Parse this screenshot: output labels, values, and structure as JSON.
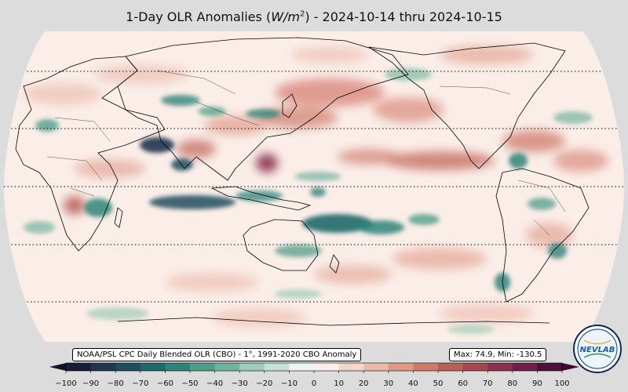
{
  "title": {
    "prefix": "1-Day OLR Anomalies (",
    "unit_main": "W/m",
    "unit_exp": "2",
    "suffix": ") - 2024-10-14 thru 2024-10-15"
  },
  "source_label": "NOAA/PSL CPC Daily Blended OLR (CBO) - 1°, 1991-2020 CBO Anomaly",
  "stats": {
    "text": "Max: 74.9,  Min: -130.5"
  },
  "colorbar": {
    "ticks": [
      "−100",
      "−90",
      "−80",
      "−70",
      "−60",
      "−50",
      "−40",
      "−30",
      "−20",
      "−10",
      "0",
      "10",
      "20",
      "30",
      "40",
      "50",
      "60",
      "70",
      "80",
      "90",
      "100"
    ],
    "colors": [
      "#1a1d3a",
      "#1f3550",
      "#1f4d5e",
      "#1d6a6a",
      "#2f8479",
      "#4f9c8a",
      "#72b3a0",
      "#9ecab8",
      "#c7e1d6",
      "#eef5f1",
      "#faefea",
      "#f4d6cc",
      "#ebb8a9",
      "#df9987",
      "#cf7a6b",
      "#bb5e57",
      "#a64650",
      "#8c3150",
      "#6e2048",
      "#4b1138"
    ],
    "extend_low_color": "#14122b",
    "extend_high_color": "#3d0a2e"
  },
  "map": {
    "projection": "robinson",
    "ocean_base_color": "#fbeee9",
    "graticule_latitudes": [
      60,
      30,
      0,
      -30,
      -60
    ]
  },
  "logo": {
    "text": "NEVLAB",
    "ring_color": "#1d5aa8"
  }
}
